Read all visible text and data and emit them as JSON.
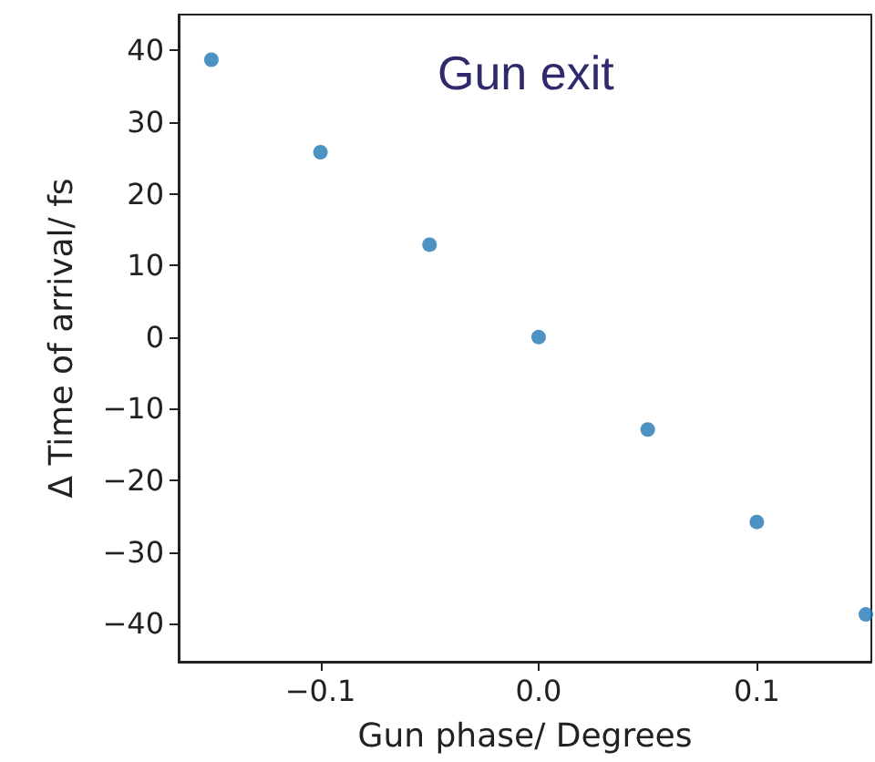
{
  "chart_data": {
    "type": "scatter",
    "title": "Gun exit",
    "xlabel": "Gun phase/ Degrees",
    "ylabel": "Δ Time of arrival/ fs",
    "x": [
      -0.15,
      -0.1,
      -0.05,
      0,
      0.05,
      0.1,
      0.15
    ],
    "series": [
      {
        "color": "#1f77b4",
        "values": [
          38.7,
          25.8,
          12.9,
          0,
          -12.9,
          -25.8,
          -38.7
        ]
      }
    ],
    "xlim": [
      -0.165,
      0.1525
    ],
    "ylim": [
      -45.3,
      45
    ],
    "xticks": [
      {
        "value": -0.1,
        "label": "−0.1"
      },
      {
        "value": 0,
        "label": "0.0"
      },
      {
        "value": 0.1,
        "label": "0.1"
      }
    ],
    "yticks": [
      {
        "value": -40,
        "label": "−40"
      },
      {
        "value": -30,
        "label": "−30"
      },
      {
        "value": -20,
        "label": "−20"
      },
      {
        "value": -10,
        "label": "−10"
      },
      0,
      10,
      20,
      30,
      40
    ],
    "marker": "circle"
  }
}
